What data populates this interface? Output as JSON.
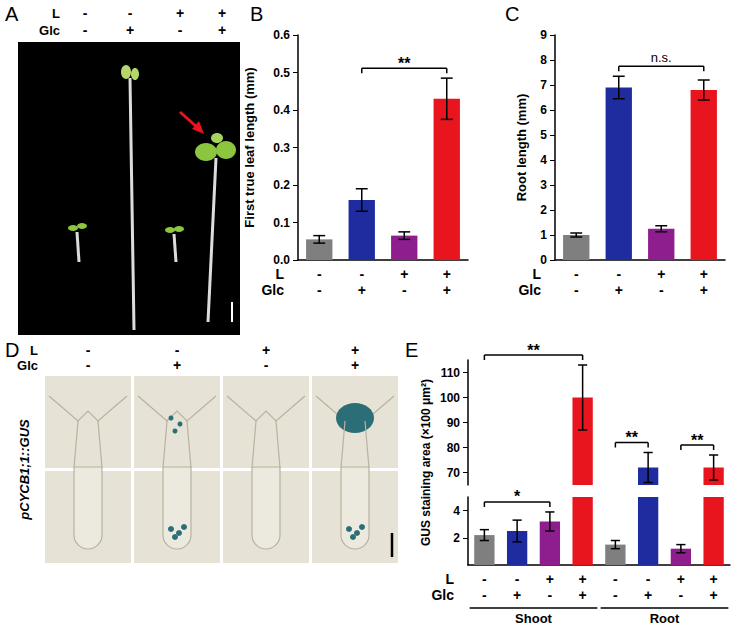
{
  "chart_data": [
    {
      "panel": "B",
      "type": "bar",
      "ylabel": "First true leaf length (mm)",
      "categories": [
        null,
        null,
        null,
        null
      ],
      "x_rows": [
        {
          "label": "L",
          "values": [
            "-",
            "-",
            "+",
            "+"
          ]
        },
        {
          "label": "Glc",
          "values": [
            "-",
            "+",
            "-",
            "+"
          ]
        }
      ],
      "values": [
        0.055,
        0.16,
        0.065,
        0.43
      ],
      "errors": [
        0.01,
        0.03,
        0.01,
        0.055
      ],
      "colors": [
        "#7f7f7f",
        "#1f2ca0",
        "#8e1d8e",
        "#e8141e"
      ],
      "ylim": [
        0,
        0.6
      ],
      "yticks": [
        {
          "value": 0,
          "label": "0.0"
        },
        0.1,
        0.2,
        0.3,
        0.4,
        0.5,
        0.6
      ],
      "grid": false,
      "annotations": [
        {
          "text": "**",
          "from": 1,
          "to": 3
        }
      ]
    },
    {
      "panel": "C",
      "type": "bar",
      "ylabel": "Root length (mm)",
      "categories": [
        null,
        null,
        null,
        null
      ],
      "x_rows": [
        {
          "label": "L",
          "values": [
            "-",
            "-",
            "+",
            "+"
          ]
        },
        {
          "label": "Glc",
          "values": [
            "-",
            "+",
            "-",
            "+"
          ]
        }
      ],
      "values": [
        1.0,
        6.9,
        1.25,
        6.8
      ],
      "errors": [
        0.08,
        0.45,
        0.12,
        0.4
      ],
      "colors": [
        "#7f7f7f",
        "#1f2ca0",
        "#8e1d8e",
        "#e8141e"
      ],
      "ylim": [
        0,
        9
      ],
      "yticks": [
        0,
        1,
        2,
        3,
        4,
        5,
        6,
        7,
        8,
        9
      ],
      "grid": false,
      "annotations": [
        {
          "text": "n.s.",
          "from": 1,
          "to": 3
        }
      ]
    },
    {
      "panel": "E",
      "type": "bar",
      "ylabel": "GUS staining area (×100 μm²)",
      "categories": [
        null,
        null,
        null,
        null,
        null,
        null,
        null,
        null
      ],
      "x_rows": [
        {
          "label": "L",
          "values": [
            "-",
            "-",
            "+",
            "+",
            "-",
            "-",
            "+",
            "+"
          ]
        },
        {
          "label": "Glc",
          "values": [
            "-",
            "+",
            "-",
            "+",
            "-",
            "+",
            "-",
            "+"
          ]
        }
      ],
      "groups": [
        {
          "label": "Shoot",
          "from": 0,
          "to": 3
        },
        {
          "label": "Root",
          "from": 4,
          "to": 7
        }
      ],
      "values": [
        2.2,
        2.5,
        3.2,
        100,
        1.5,
        72,
        1.2,
        72
      ],
      "errors": [
        0.4,
        0.8,
        0.7,
        13,
        0.3,
        6,
        0.3,
        5
      ],
      "colors": [
        "#7f7f7f",
        "#1f2ca0",
        "#8e1d8e",
        "#e8141e",
        "#7f7f7f",
        "#1f2ca0",
        "#8e1d8e",
        "#e8141e"
      ],
      "axis_break": {
        "lower": {
          "ylim": [
            0,
            5
          ],
          "yticks": [
            2,
            4
          ]
        },
        "upper": {
          "ylim": [
            65,
            115
          ],
          "yticks": [
            70,
            80,
            90,
            100,
            110
          ]
        }
      },
      "grid": false,
      "annotations": [
        {
          "text": "*",
          "from": 0,
          "to": 2
        },
        {
          "text": "**",
          "from": 0,
          "to": 3
        },
        {
          "text": "**",
          "from": 4,
          "to": 5
        },
        {
          "text": "**",
          "from": 6,
          "to": 7
        }
      ]
    }
  ],
  "images": [
    {
      "panel": "A",
      "conditions": [
        {
          "label": "L",
          "values": [
            "-",
            "-",
            "+",
            "+"
          ]
        },
        {
          "label": "Glc",
          "values": [
            "-",
            "+",
            "-",
            "+"
          ]
        }
      ]
    },
    {
      "panel": "D",
      "row_title": "pCYCB1;1::GUS",
      "conditions": [
        {
          "label": "L",
          "values": [
            "-",
            "-",
            "+",
            "+"
          ]
        },
        {
          "label": "Glc",
          "values": [
            "-",
            "+",
            "-",
            "+"
          ]
        }
      ]
    }
  ]
}
